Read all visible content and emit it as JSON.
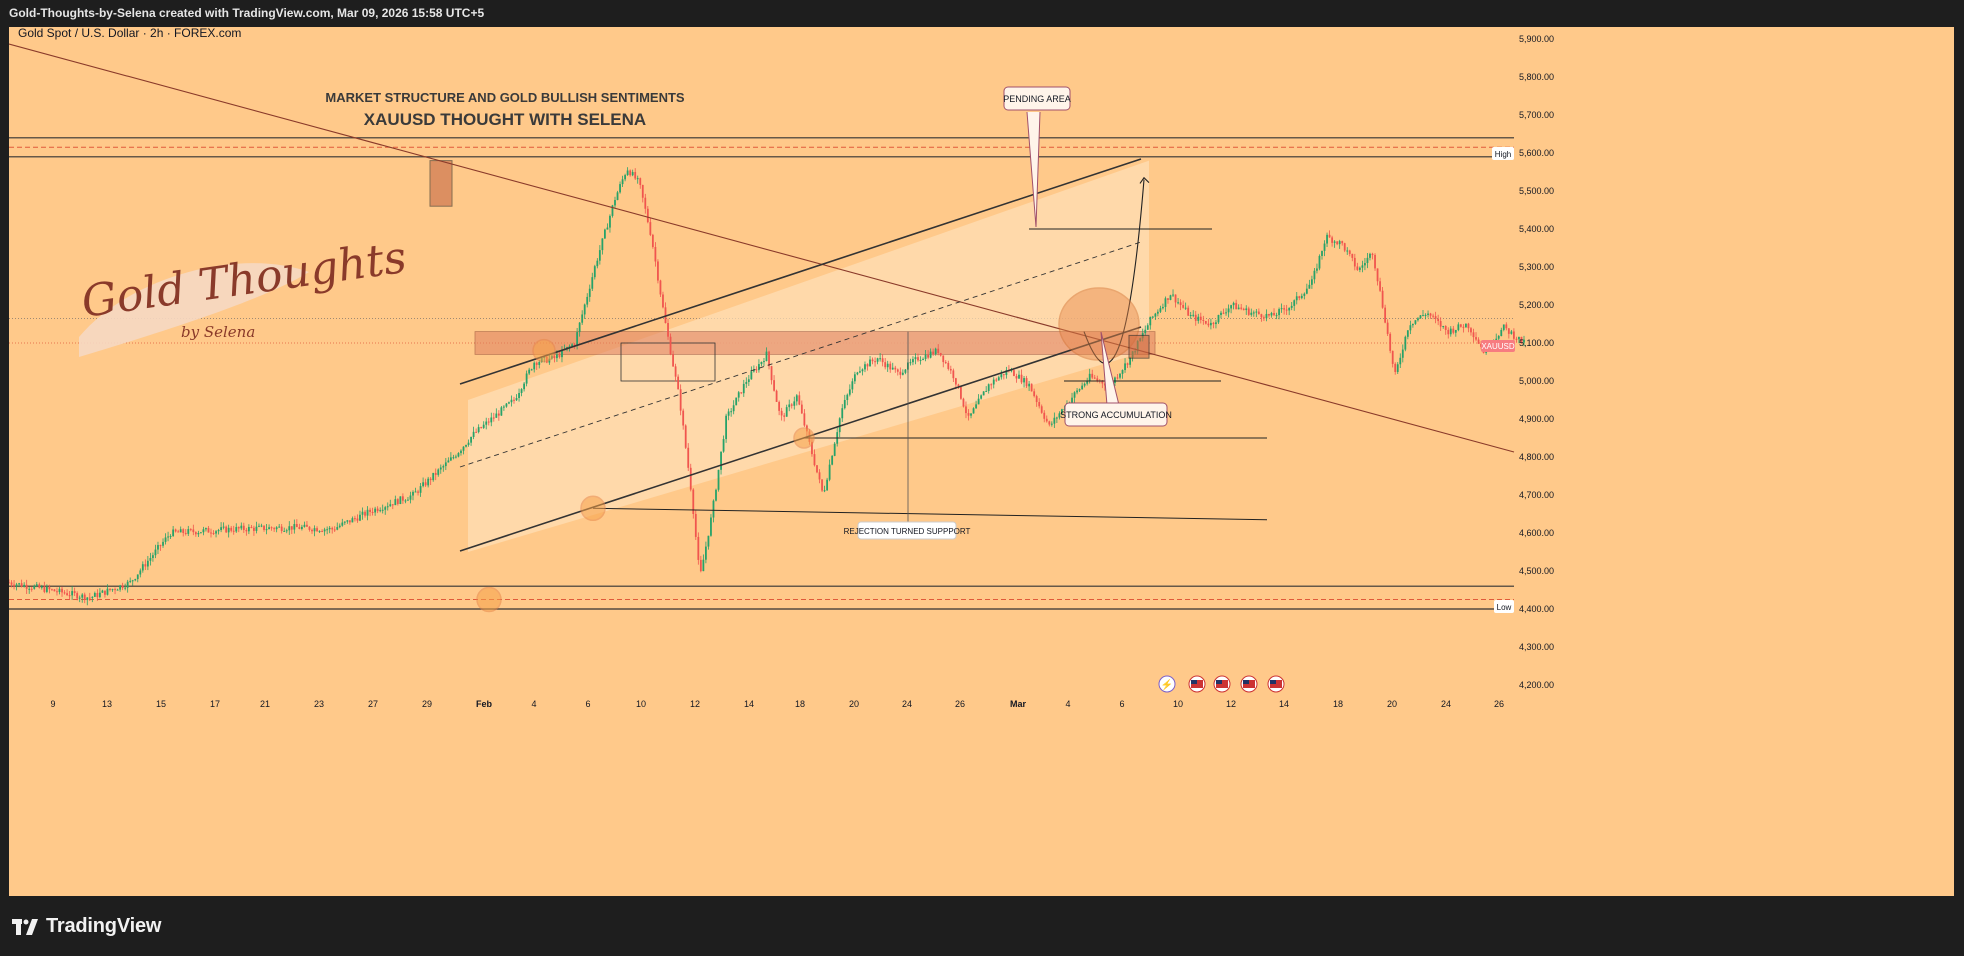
{
  "header": {
    "title": "Gold-Thoughts-by-Selena created with TradingView.com, Mar 09, 2026 15:58 UTC+5"
  },
  "chart": {
    "symbol_line": "Gold Spot / U.S. Dollar · 2h · FOREX.com",
    "title1": "MARKET STRUCTURE AND GOLD BULLISH SENTIMENTS",
    "title2": "XAUUSD THOUGHT WITH SELENA",
    "logo_line1": "Gold Thoughts",
    "logo_line2": "by Selena",
    "labels": {
      "pending": "PENDING AREA",
      "accumulation": "STRONG ACCUMULATION",
      "rejection": "REJECTION TURNED SUPPPORT",
      "high": "High",
      "low": "Low",
      "price_tag": "XAUUSD"
    }
  },
  "footer": {
    "brand": "TradingView"
  },
  "colors": {
    "background": "#ffc98a",
    "up": "#26a269",
    "down": "#f0554e",
    "accent": "#e8884a",
    "price_tag": "#f77c80"
  },
  "chart_data": {
    "type": "candlestick",
    "timeframe": "2h",
    "ylim": [
      4200,
      5900
    ],
    "y_ticks": [
      "5,900.00",
      "5,800.00",
      "5,700.00",
      "5,600.00",
      "5,500.00",
      "5,400.00",
      "5,300.00",
      "5,200.00",
      "5,100.00",
      "5,000.00",
      "4,900.00",
      "4,800.00",
      "4,700.00",
      "4,600.00",
      "4,500.00",
      "4,400.00",
      "4,300.00",
      "4,200.00"
    ],
    "x_ticks": [
      "9",
      "13",
      "15",
      "17",
      "21",
      "23",
      "27",
      "29",
      "Feb",
      "4",
      "6",
      "10",
      "12",
      "14",
      "18",
      "20",
      "24",
      "26",
      "Mar",
      "4",
      "6",
      "10",
      "12",
      "14",
      "18",
      "20",
      "24",
      "26"
    ],
    "levels": {
      "high": 5600,
      "low": 4425,
      "last_price": 5100
    },
    "price_path": [
      [
        0,
        4470
      ],
      [
        4,
        4430
      ],
      [
        6,
        4470
      ],
      [
        8,
        4600
      ],
      [
        11,
        4610
      ],
      [
        14,
        4615
      ],
      [
        16,
        4610
      ],
      [
        18,
        4660
      ],
      [
        20,
        4700
      ],
      [
        22,
        4800
      ],
      [
        23,
        4860
      ],
      [
        25,
        4950
      ],
      [
        26,
        5050
      ],
      [
        27,
        5060
      ],
      [
        28,
        5100
      ],
      [
        29,
        5300
      ],
      [
        30,
        5480
      ],
      [
        30.6,
        5560
      ],
      [
        31.2,
        5520
      ],
      [
        31.8,
        5380
      ],
      [
        32.5,
        5150
      ],
      [
        33.2,
        4950
      ],
      [
        33.8,
        4700
      ],
      [
        34.2,
        4480
      ],
      [
        34.8,
        4650
      ],
      [
        35.5,
        4900
      ],
      [
        36.5,
        5000
      ],
      [
        37.5,
        5070
      ],
      [
        38.2,
        4900
      ],
      [
        39,
        4960
      ],
      [
        39.8,
        4800
      ],
      [
        40.3,
        4700
      ],
      [
        41.2,
        4920
      ],
      [
        42,
        5030
      ],
      [
        43,
        5060
      ],
      [
        44,
        5020
      ],
      [
        45,
        5060
      ],
      [
        46,
        5080
      ],
      [
        46.8,
        5010
      ],
      [
        47.5,
        4900
      ],
      [
        48.5,
        4990
      ],
      [
        49.5,
        5030
      ],
      [
        50.5,
        4990
      ],
      [
        51.5,
        4880
      ],
      [
        52.5,
        4950
      ],
      [
        53.5,
        5010
      ],
      [
        54.5,
        4990
      ],
      [
        55.5,
        5060
      ],
      [
        56.5,
        5160
      ],
      [
        57.5,
        5230
      ],
      [
        58.5,
        5170
      ],
      [
        59.5,
        5150
      ],
      [
        60.5,
        5200
      ],
      [
        61.5,
        5180
      ],
      [
        62.5,
        5170
      ],
      [
        63.5,
        5200
      ],
      [
        64.5,
        5260
      ],
      [
        65.2,
        5380
      ],
      [
        66,
        5360
      ],
      [
        66.8,
        5290
      ],
      [
        67.5,
        5340
      ],
      [
        68.1,
        5170
      ],
      [
        68.6,
        5010
      ],
      [
        69.3,
        5150
      ],
      [
        70.2,
        5180
      ],
      [
        71.2,
        5130
      ],
      [
        72.2,
        5150
      ],
      [
        73,
        5080
      ],
      [
        74,
        5140
      ],
      [
        75,
        5100
      ]
    ],
    "annotations": [
      "PENDING AREA",
      "STRONG ACCUMULATION",
      "REJECTION TURNED SUPPPORT"
    ]
  }
}
